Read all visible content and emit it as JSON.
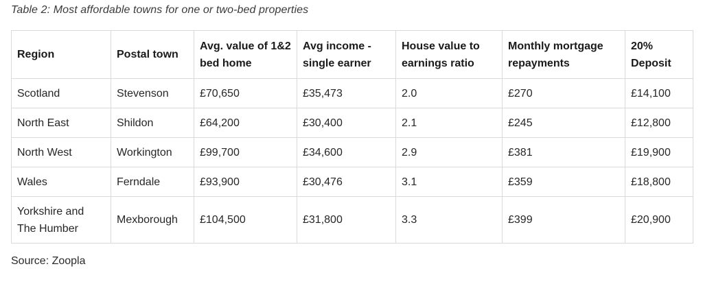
{
  "caption": "Table 2: Most affordable towns for one or two-bed properties",
  "table": {
    "headers": [
      "Region",
      "Postal town",
      "Avg. value of 1&2 bed home",
      "Avg income - single earner",
      "House value to earnings ratio",
      "Monthly mortgage repayments",
      "20% Deposit"
    ],
    "rows": [
      [
        "Scotland",
        "Stevenson",
        "£70,650",
        "£35,473",
        "2.0",
        "£270",
        "£14,100"
      ],
      [
        "North East",
        "Shildon",
        "£64,200",
        "£30,400",
        "2.1",
        "£245",
        "£12,800"
      ],
      [
        "North West",
        "Workington",
        "£99,700",
        "£34,600",
        "2.9",
        "£381",
        "£19,900"
      ],
      [
        "Wales",
        "Ferndale",
        "£93,900",
        "£30,476",
        "3.1",
        "£359",
        "£18,800"
      ],
      [
        "Yorkshire and The Humber",
        "Mexborough",
        "£104,500",
        "£31,800",
        "3.3",
        "£399",
        "£20,900"
      ]
    ]
  },
  "source": "Source: Zoopla"
}
